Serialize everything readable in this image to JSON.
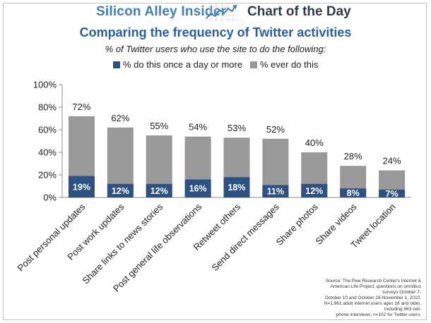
{
  "header": {
    "brand": "Silicon Alley Insider",
    "section": "Chart of the Day"
  },
  "chart_data": {
    "type": "bar",
    "title": "Comparing the frequency of Twitter activities",
    "subtitle": "% of Twitter users who use the site to do the following:",
    "categories": [
      "Post personal updates",
      "Post work updates",
      "Share links to news stories",
      "Post general life observations",
      "Retweet others",
      "Send direct messages",
      "Share photos",
      "Share videos",
      "Tweet location"
    ],
    "series": [
      {
        "name": "% do this once a day or more",
        "values": [
          19,
          12,
          12,
          16,
          18,
          11,
          12,
          8,
          7
        ],
        "color": "#2d5281"
      },
      {
        "name": "% ever do this",
        "values": [
          72,
          62,
          55,
          54,
          53,
          52,
          40,
          28,
          24
        ],
        "color": "#999999"
      }
    ],
    "ylim": [
      0,
      100
    ],
    "yticks": [
      "0%",
      "20%",
      "40%",
      "60%",
      "80%",
      "100%"
    ],
    "ytick_values": [
      0,
      20,
      40,
      60,
      80,
      100
    ],
    "xlabel": "",
    "ylabel": "",
    "legend_position": "top"
  },
  "source_lines": [
    "Source: The Pew Research Center's Internet &",
    "American Life Project, questions on omnibus",
    "surveys October 7-",
    "October 10 and October 28-November 1, 2010.",
    "N=1,961 adult internet users ages 18 and older,",
    "including 663 cell-",
    "phone interviews; n=102 for Twitter users."
  ]
}
